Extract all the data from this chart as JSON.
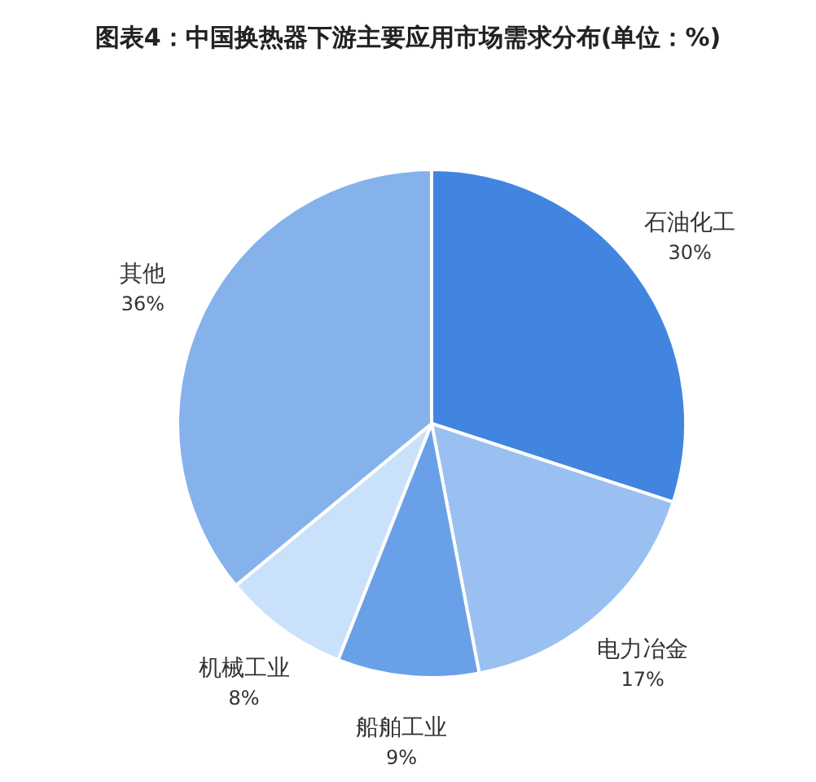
{
  "chart_data": {
    "type": "pie",
    "title": "图表4：中国换热器下游主要应用市场需求分布(单位：%)",
    "categories": [
      "石油化工",
      "电力冶金",
      "船舶工业",
      "机械工业",
      "其他"
    ],
    "values": [
      30,
      17,
      9,
      8,
      36
    ],
    "value_labels": [
      "30%",
      "17%",
      "9%",
      "8%",
      "36%"
    ],
    "colors": [
      "#4285e0",
      "#9ac0f2",
      "#6aa0e8",
      "#cae1fb",
      "#86b2ec"
    ]
  }
}
